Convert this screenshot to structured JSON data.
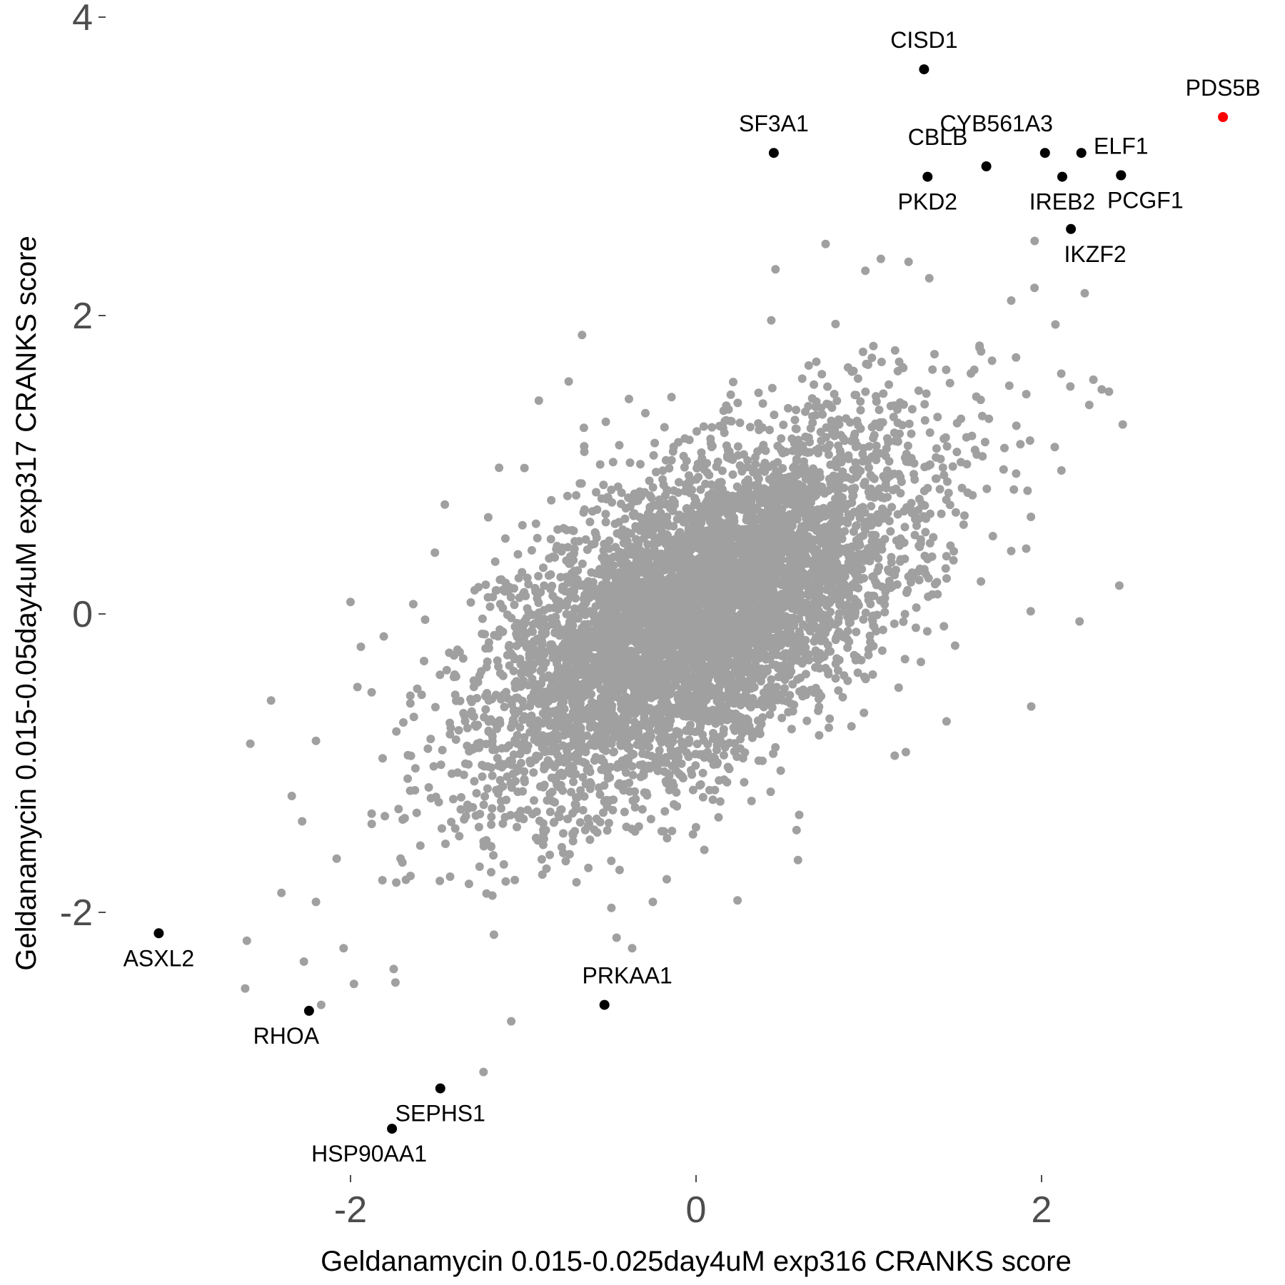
{
  "chart_data": {
    "type": "scatter",
    "title": "",
    "xlabel": "Geldanamycin 0.015-0.025day4uM exp316 CRANKS score",
    "ylabel": "Geldanamycin 0.015-0.05day4uM exp317 CRANKS score",
    "xlim": [
      -3.2,
      3.3
    ],
    "ylim": [
      -3.6,
      4.1
    ],
    "xticks": [
      -2,
      0,
      2
    ],
    "yticks": [
      -2,
      0,
      2,
      4
    ],
    "xtick_labels": [
      "-2",
      "0",
      "2"
    ],
    "ytick_labels": [
      "-2",
      "0",
      "2",
      "4"
    ],
    "grid": false,
    "legend": "none",
    "background_points": {
      "color": "#a0a0a0",
      "description_count_estimate": 6000,
      "correlation_estimate": 0.6,
      "outliers": [
        [
          -2.0,
          0.08
        ],
        [
          -1.94,
          -0.22
        ],
        [
          -1.96,
          -0.49
        ],
        [
          -2.46,
          -0.58
        ],
        [
          -2.58,
          -0.87
        ],
        [
          -2.2,
          -0.85
        ],
        [
          -2.34,
          -1.22
        ],
        [
          -2.28,
          -1.39
        ],
        [
          -2.4,
          -1.87
        ],
        [
          -2.2,
          -1.93
        ],
        [
          -2.6,
          -2.19
        ],
        [
          -2.61,
          -2.51
        ],
        [
          -2.27,
          -2.33
        ],
        [
          -2.08,
          -1.64
        ],
        [
          -2.04,
          -2.24
        ],
        [
          -1.98,
          -2.48
        ],
        [
          -2.17,
          -2.62
        ],
        [
          -1.75,
          -2.38
        ],
        [
          -1.74,
          -2.47
        ],
        [
          -1.07,
          -2.73
        ],
        [
          -1.23,
          -3.07
        ],
        [
          -1.17,
          -2.15
        ],
        [
          -0.49,
          -1.97
        ],
        [
          -0.46,
          -2.17
        ],
        [
          -0.37,
          -2.24
        ],
        [
          -0.25,
          -1.93
        ],
        [
          0.24,
          -1.92
        ],
        [
          0.49,
          -1.05
        ],
        [
          0.59,
          -1.65
        ],
        [
          1.15,
          -0.95
        ],
        [
          1.45,
          -0.72
        ],
        [
          1.94,
          -0.62
        ],
        [
          2.22,
          -0.05
        ],
        [
          2.45,
          0.19
        ],
        [
          1.35,
          2.25
        ],
        [
          0.75,
          2.48
        ],
        [
          1.07,
          2.38
        ],
        [
          1.96,
          2.5
        ],
        [
          2.25,
          2.15
        ],
        [
          2.39,
          1.49
        ],
        [
          2.3,
          1.57
        ],
        [
          2.47,
          1.27
        ],
        [
          2.08,
          1.94
        ],
        [
          1.65,
          1.76
        ],
        [
          -0.66,
          1.87
        ],
        [
          -0.91,
          1.43
        ],
        [
          -1.14,
          0.98
        ],
        [
          0.46,
          2.31
        ],
        [
          0.98,
          2.3
        ],
        [
          1.23,
          2.36
        ]
      ]
    },
    "labeled_points": [
      {
        "label": "CISD1",
        "x": 1.32,
        "y": 3.65,
        "color": "#000000",
        "label_pos": "above"
      },
      {
        "label": "PDS5B",
        "x": 3.05,
        "y": 3.33,
        "color": "#ff0000",
        "label_pos": "above"
      },
      {
        "label": "SF3A1",
        "x": 0.45,
        "y": 3.09,
        "color": "#000000",
        "label_pos": "above"
      },
      {
        "label": "CYB561A3",
        "x": 2.02,
        "y": 3.09,
        "color": "#000000",
        "label_pos": "above-left"
      },
      {
        "label": "",
        "x": 2.23,
        "y": 3.09,
        "color": "#000000",
        "label_pos": "none"
      },
      {
        "label": "ELF1",
        "x": 2.46,
        "y": 2.94,
        "color": "#000000",
        "label_pos": "above"
      },
      {
        "label": "CBLB",
        "x": 1.68,
        "y": 3.0,
        "color": "#000000",
        "label_pos": "above-left"
      },
      {
        "label": "PKD2",
        "x": 1.34,
        "y": 2.93,
        "color": "#000000",
        "label_pos": "below"
      },
      {
        "label": "IREB2",
        "x": 2.12,
        "y": 2.93,
        "color": "#000000",
        "label_pos": "below"
      },
      {
        "label": "PCGF1",
        "x": 2.46,
        "y": 2.94,
        "color": "#000000",
        "label_pos": "below-right"
      },
      {
        "label": "IKZF2",
        "x": 2.17,
        "y": 2.58,
        "color": "#000000",
        "label_pos": "below-right"
      },
      {
        "label": "ASXL2",
        "x": -3.11,
        "y": -2.14,
        "color": "#000000",
        "label_pos": "below"
      },
      {
        "label": "RHOA",
        "x": -2.24,
        "y": -2.66,
        "color": "#000000",
        "label_pos": "below-left"
      },
      {
        "label": "PRKAA1",
        "x": -0.53,
        "y": -2.62,
        "color": "#000000",
        "label_pos": "above-right"
      },
      {
        "label": "SEPHS1",
        "x": -1.48,
        "y": -3.18,
        "color": "#000000",
        "label_pos": "below"
      },
      {
        "label": "HSP90AA1",
        "x": -1.76,
        "y": -3.45,
        "color": "#000000",
        "label_pos": "below-left"
      }
    ]
  }
}
